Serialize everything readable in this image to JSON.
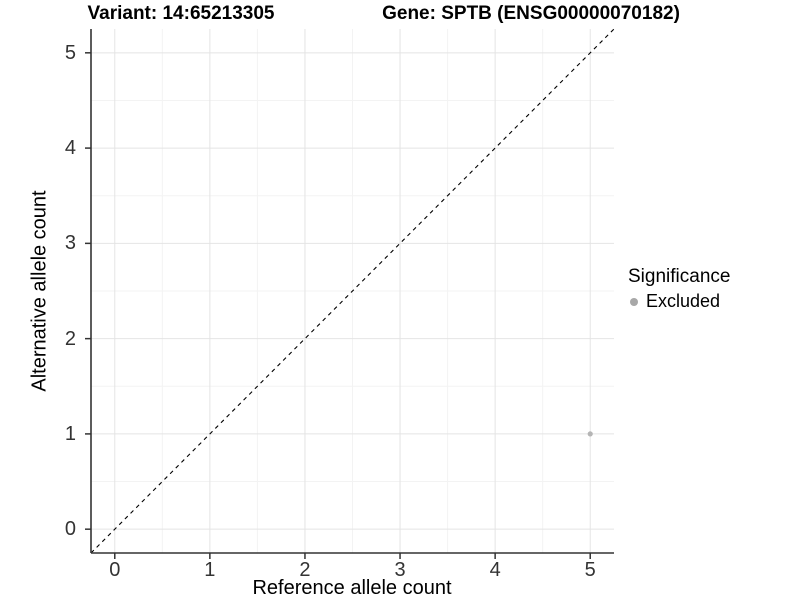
{
  "chart_data": {
    "type": "scatter",
    "title_variant": "Variant: 14:65213305",
    "title_gene": "Gene: SPTB (ENSG00000070182)",
    "xlabel": "Reference allele count",
    "ylabel": "Alternative allele count",
    "x_ticks": [
      0,
      1,
      2,
      3,
      4,
      5
    ],
    "y_ticks": [
      0,
      1,
      2,
      3,
      4,
      5
    ],
    "x_minor_ticks": [
      0.5,
      1.5,
      2.5,
      3.5,
      4.5
    ],
    "y_minor_ticks": [
      0.5,
      1.5,
      2.5,
      3.5,
      4.5
    ],
    "xlim": [
      -0.25,
      5.25
    ],
    "ylim": [
      -0.25,
      5.25
    ],
    "grid": true,
    "identity_line": {
      "style": "dashed",
      "slope": 1,
      "intercept": 0,
      "color": "#000000"
    },
    "points": [
      {
        "x": 5,
        "y": 1,
        "significance": "Excluded"
      }
    ],
    "legend": {
      "title": "Significance",
      "position": "right",
      "entries": [
        {
          "label": "Excluded",
          "color": "#a8a8a8"
        }
      ]
    },
    "colors": {
      "background": "#ffffff",
      "grid_major": "#e4e4e4",
      "grid_minor": "#f3f3f3",
      "axis_line": "#333333",
      "tick_mark": "#333333",
      "tick_text": "#333333",
      "point": "#b5b5b5"
    }
  }
}
